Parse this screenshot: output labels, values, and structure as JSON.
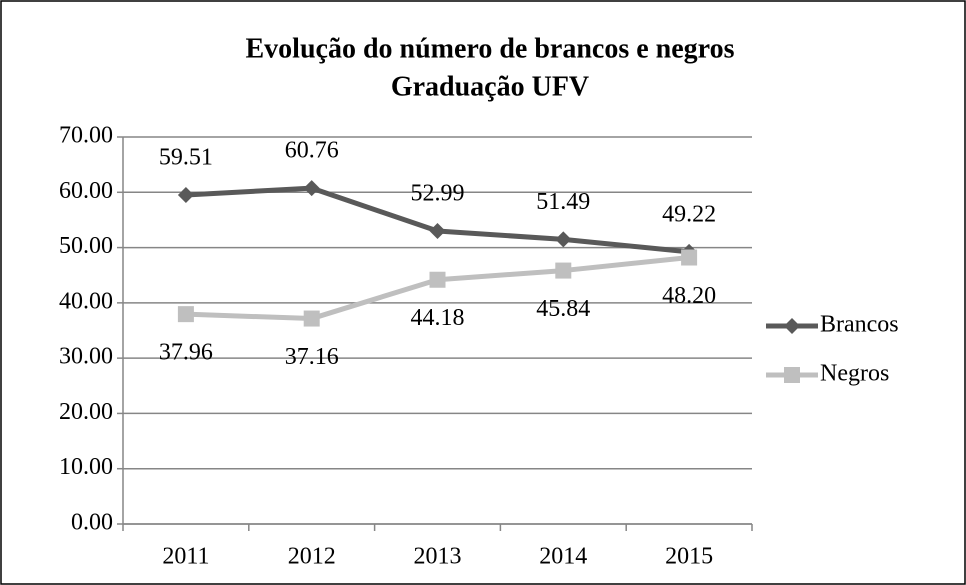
{
  "chart_data": {
    "type": "line",
    "title": "Evolução do número de brancos e negros",
    "subtitle": "Graduação UFV",
    "categories": [
      "2011",
      "2012",
      "2013",
      "2014",
      "2015"
    ],
    "series": [
      {
        "name": "Brancos",
        "color": "#595959",
        "marker": "diamond",
        "values": [
          59.51,
          60.76,
          52.99,
          51.49,
          49.22
        ],
        "value_labels": [
          "59.51",
          "60.76",
          "52.99",
          "51.49",
          "49.22"
        ]
      },
      {
        "name": "Negros",
        "color": "#bfbfbf",
        "marker": "square",
        "values": [
          37.96,
          37.16,
          44.18,
          45.84,
          48.2
        ],
        "value_labels": [
          "37.96",
          "37.16",
          "44.18",
          "45.84",
          "48.20"
        ]
      }
    ],
    "ylim": [
      0,
      70
    ],
    "yticks": [
      {
        "value": 0,
        "label": "0.00"
      },
      {
        "value": 10,
        "label": "10.00"
      },
      {
        "value": 20,
        "label": "20.00"
      },
      {
        "value": 30,
        "label": "30.00"
      },
      {
        "value": 40,
        "label": "40.00"
      },
      {
        "value": 50,
        "label": "50.00"
      },
      {
        "value": 60,
        "label": "60.00"
      },
      {
        "value": 70,
        "label": "70.00"
      }
    ],
    "grid": true,
    "legend": "right"
  }
}
